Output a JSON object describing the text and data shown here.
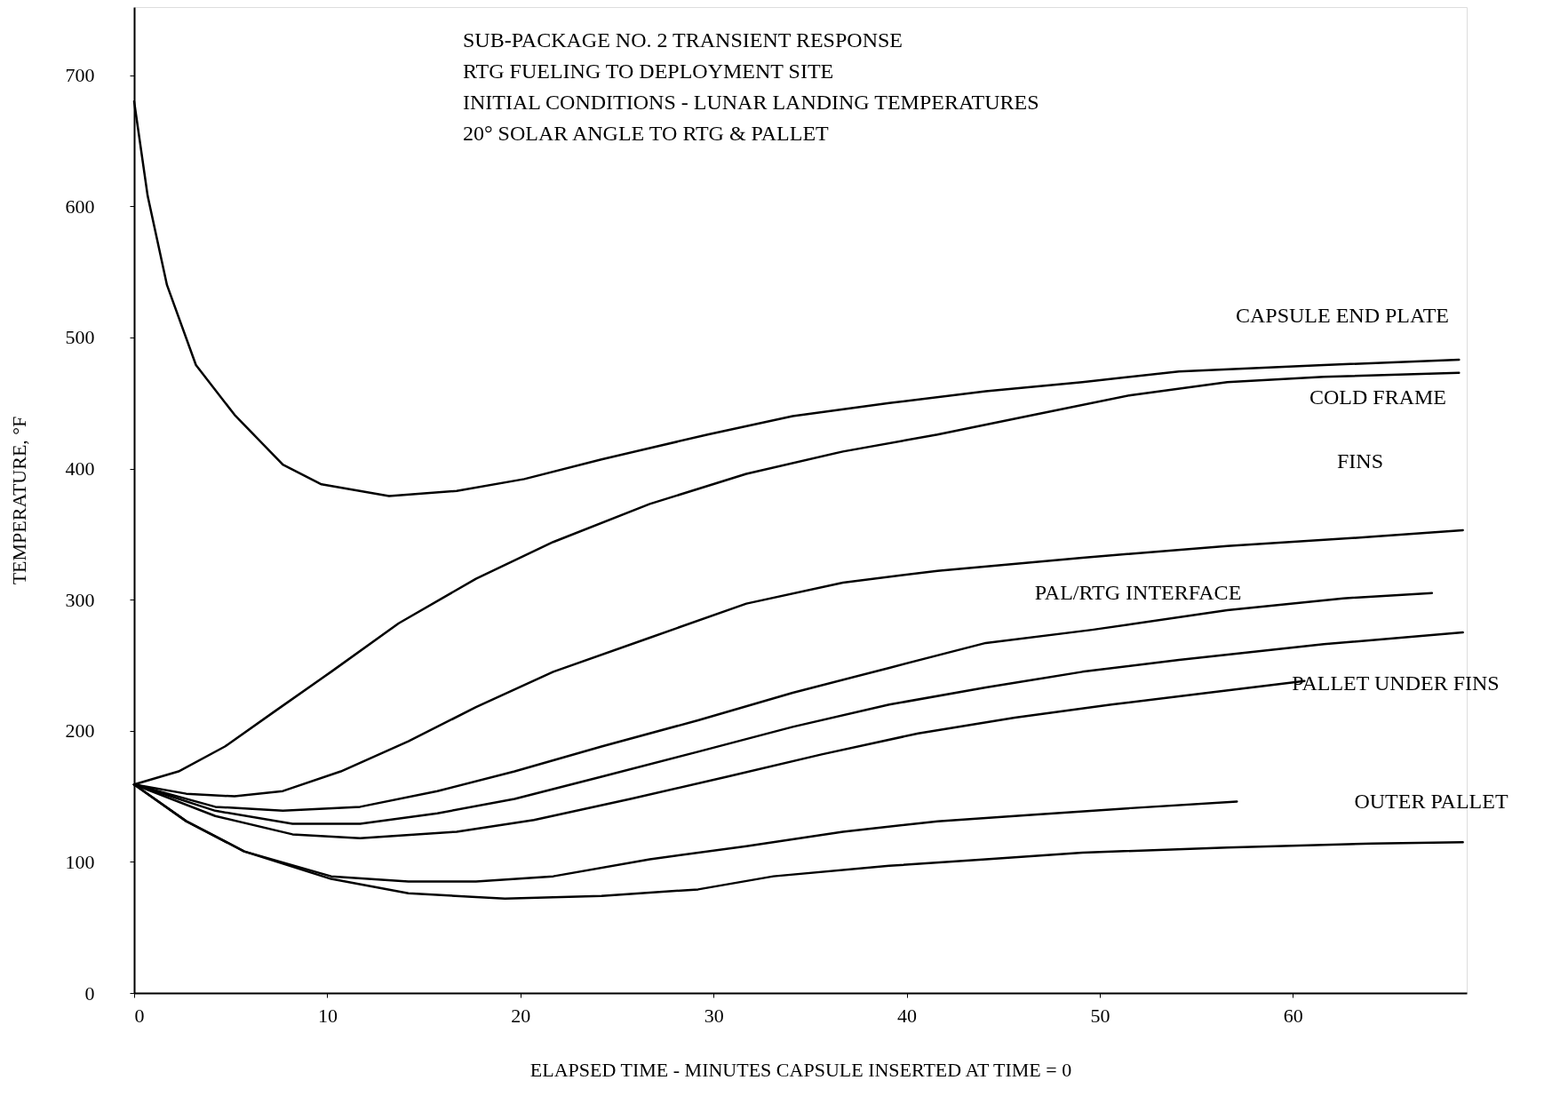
{
  "chart_data": {
    "type": "line",
    "xlabel": "ELAPSED TIME - MINUTES  CAPSULE INSERTED AT TIME = 0",
    "ylabel": "TEMPERATURE, °F",
    "xlim": [
      0,
      69
    ],
    "ylim": [
      0,
      752
    ],
    "xticks": [
      0,
      10,
      20,
      30,
      40,
      50,
      60
    ],
    "yticks": [
      0,
      100,
      200,
      300,
      400,
      500,
      600,
      700
    ],
    "grid": false,
    "legend": false,
    "marker": "none",
    "line_style": "solid",
    "series": [
      {
        "color": "#000000",
        "x": [
          0,
          0.7,
          1.7,
          3.2,
          5.2,
          7.7,
          9.7,
          13.2,
          16.7,
          20.2,
          24.2,
          29.7,
          34.1,
          39.1,
          44.1,
          49.1,
          54.1,
          61.6,
          68.6
        ],
        "values": [
          680,
          608,
          540,
          479,
          441,
          403,
          388,
          379,
          383,
          392,
          407,
          426,
          440,
          450,
          459,
          466,
          474,
          479,
          483
        ]
      },
      {
        "color": "#000000",
        "x": [
          0,
          2.3,
          4.7,
          7.2,
          10.2,
          13.7,
          17.7,
          21.7,
          26.7,
          31.7,
          36.7,
          41.6,
          46.6,
          51.6,
          56.6,
          61.6,
          68.6
        ],
        "values": [
          159,
          169,
          188,
          214,
          245,
          282,
          316,
          344,
          373,
          396,
          413,
          426,
          441,
          456,
          466,
          470,
          473
        ]
      },
      {
        "color": "#000000",
        "x": [
          0,
          2.7,
          5.2,
          7.7,
          10.7,
          14.2,
          17.7,
          21.7,
          26.7,
          31.7,
          36.7,
          41.6,
          49.1,
          56.6,
          64.1,
          68.8
        ],
        "values": [
          159,
          152,
          150,
          154,
          169,
          192,
          218,
          245,
          271,
          297,
          313,
          322,
          332,
          341,
          348,
          353
        ]
      },
      {
        "color": "#000000",
        "x": [
          0,
          4.2,
          7.7,
          11.7,
          15.7,
          19.7,
          24.2,
          29.2,
          34.1,
          39.1,
          44.1,
          49.6,
          56.6,
          62.6,
          67.2
        ],
        "values": [
          159,
          142,
          139,
          142,
          154,
          169,
          188,
          208,
          229,
          248,
          267,
          277,
          292,
          301,
          305
        ]
      },
      {
        "color": "#000000",
        "x": [
          0,
          4.2,
          8.2,
          11.7,
          15.7,
          19.7,
          24.2,
          29.2,
          34.1,
          39.1,
          44.1,
          49.1,
          54.1,
          61.6,
          68.8
        ],
        "values": [
          159,
          139,
          129,
          129,
          137,
          148,
          165,
          184,
          203,
          220,
          233,
          245,
          254,
          266,
          275
        ]
      },
      {
        "color": "#000000",
        "x": [
          0,
          4.2,
          8.2,
          11.7,
          16.7,
          20.7,
          25.7,
          30.7,
          35.6,
          40.6,
          45.6,
          50.6,
          55.6,
          60.6
        ],
        "values": [
          159,
          135,
          121,
          118,
          123,
          132,
          148,
          165,
          182,
          198,
          210,
          220,
          229,
          238
        ]
      },
      {
        "color": "#000000",
        "x": [
          0,
          2.7,
          5.7,
          10.2,
          14.2,
          17.7,
          21.7,
          26.7,
          31.7,
          36.7,
          41.6,
          46.6,
          51.6,
          57.1
        ],
        "values": [
          159,
          131,
          108,
          89,
          85,
          85,
          89,
          102,
          112,
          123,
          131,
          136,
          141,
          146
        ]
      },
      {
        "color": "#000000",
        "x": [
          0,
          2.7,
          5.7,
          10.2,
          14.2,
          19.2,
          24.2,
          29.2,
          33.1,
          39.1,
          44.1,
          49.1,
          56.6,
          64.1,
          68.8
        ],
        "values": [
          159,
          131,
          108,
          87,
          76,
          72,
          74,
          79,
          89,
          97,
          102,
          107,
          111,
          114,
          115
        ]
      }
    ],
    "annotations": [
      "SUB-PACKAGE NO. 2 TRANSIENT RESPONSE",
      "RTG FUELING TO DEPLOYMENT SITE",
      "INITIAL CONDITIONS - LUNAR LANDING TEMPERATURES",
      "20° SOLAR ANGLE TO RTG & PALLET",
      "CAPSULE END PLATE",
      "COLD FRAME",
      "FINS",
      "PAL/RTG INTERFACE",
      "PALLET UNDER FINS",
      "OUTER PALLET"
    ]
  }
}
